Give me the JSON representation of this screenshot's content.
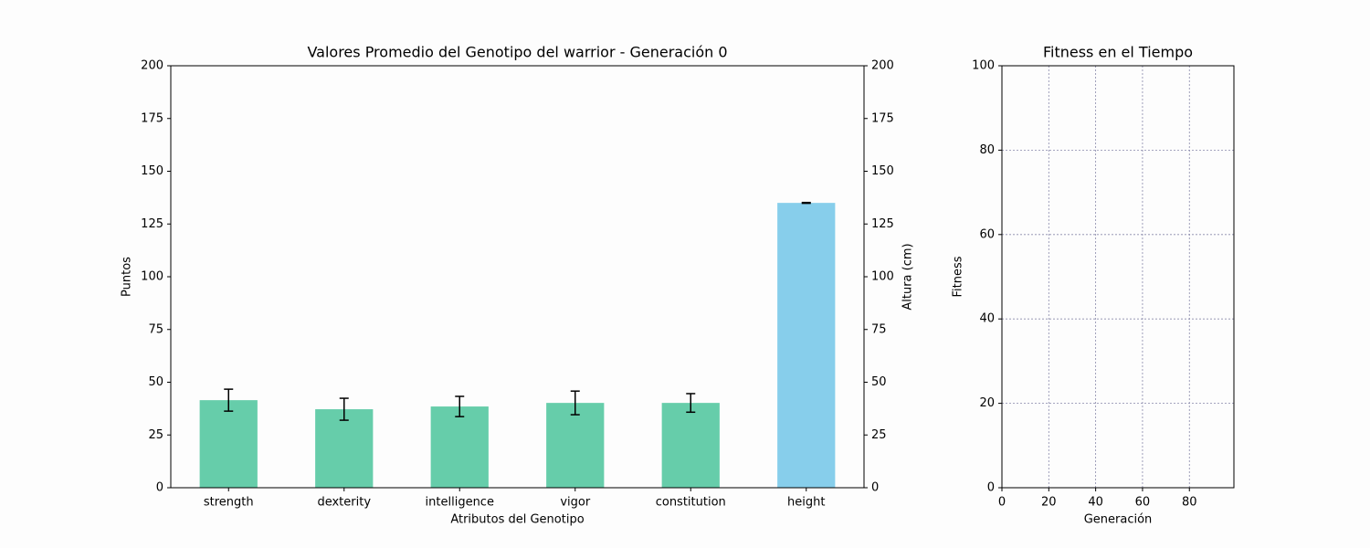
{
  "chart_data": [
    {
      "type": "bar",
      "title": "Valores Promedio del Genotipo del warrior - Generación 0",
      "xlabel": "Atributos del Genotipo",
      "ylabel": "Puntos",
      "y2label": "Altura (cm)",
      "categories": [
        "strength",
        "dexterity",
        "intelligence",
        "vigor",
        "constitution",
        "height"
      ],
      "series": [
        {
          "color": "#66cdaa",
          "values": [
            41.5,
            37.2,
            38.5,
            40.2,
            40.2,
            null
          ],
          "errors": [
            5.2,
            5.2,
            4.8,
            5.6,
            4.4,
            null
          ]
        },
        {
          "color": "#87ceeb",
          "axis": "y2",
          "values": [
            null,
            null,
            null,
            null,
            null,
            135
          ],
          "errors": [
            null,
            null,
            null,
            null,
            null,
            0.2
          ]
        }
      ],
      "ylim": [
        0,
        200
      ],
      "yticks": [
        0,
        25,
        50,
        75,
        100,
        125,
        150,
        175,
        200
      ],
      "y2lim": [
        0,
        200
      ],
      "y2ticks": [
        0,
        25,
        50,
        75,
        100,
        125,
        150,
        175,
        200
      ]
    },
    {
      "type": "line",
      "title": "Fitness en el Tiempo",
      "xlabel": "Generación",
      "ylabel": "Fitness",
      "xlim": [
        0,
        99
      ],
      "xticks": [
        0,
        20,
        40,
        60,
        80
      ],
      "ylim": [
        0,
        100
      ],
      "yticks": [
        0,
        20,
        40,
        60,
        80,
        100
      ],
      "grid": true
    }
  ]
}
